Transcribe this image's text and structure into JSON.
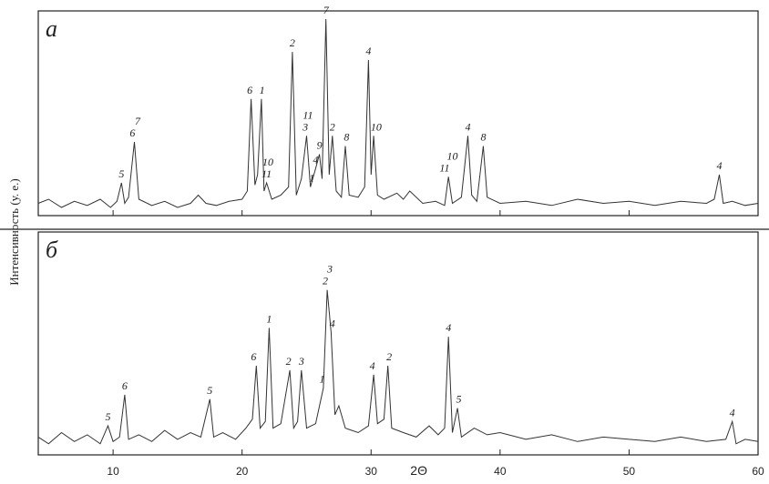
{
  "chart_data": [
    {
      "type": "line",
      "panel_label": "а",
      "ylabel": "Интенсивность (у. е.)",
      "color": "#333333",
      "xlim": [
        4.2,
        60
      ],
      "ylim": [
        0,
        100
      ],
      "x": [
        4.2,
        5,
        6,
        7,
        8,
        9,
        9.8,
        10.3,
        10.65,
        10.9,
        11.2,
        11.65,
        12,
        13,
        14,
        15,
        16,
        16.6,
        17.2,
        18,
        19,
        20,
        20.4,
        20.7,
        21,
        21.2,
        21.5,
        21.7,
        21.9,
        22.3,
        23,
        23.6,
        23.9,
        24.2,
        24.6,
        25.0,
        25.3,
        25.7,
        26.0,
        26.2,
        26.5,
        26.75,
        27.0,
        27.3,
        27.7,
        28.0,
        28.3,
        29,
        29.5,
        29.8,
        30.0,
        30.2,
        30.5,
        31,
        32,
        32.5,
        33,
        34,
        35,
        35.7,
        36.0,
        36.3,
        37,
        37.5,
        37.8,
        38.2,
        38.7,
        39,
        40,
        42,
        44,
        46,
        48,
        50,
        52,
        54,
        56,
        56.6,
        57.0,
        57.3,
        58,
        59,
        60
      ],
      "values": [
        6,
        8,
        4,
        7,
        5,
        8,
        4,
        7,
        16,
        6,
        9,
        36,
        8,
        5,
        7,
        4,
        6,
        10,
        6,
        5,
        7,
        8,
        12,
        57,
        15,
        20,
        57,
        12,
        16,
        8,
        10,
        14,
        80,
        10,
        18,
        39,
        14,
        23,
        30,
        18,
        96,
        20,
        39,
        12,
        9,
        34,
        10,
        9,
        14,
        76,
        20,
        39,
        10,
        8,
        11,
        8,
        12,
        6,
        7,
        5,
        19,
        6,
        9,
        39,
        10,
        7,
        34,
        9,
        6,
        7,
        5,
        8,
        6,
        7,
        5,
        7,
        6,
        8,
        20,
        6,
        7,
        5,
        6
      ],
      "annotations": [
        {
          "label": "5",
          "x": 10.65
        },
        {
          "label": "6",
          "x": 11.5
        },
        {
          "label": "7",
          "x": 11.9
        },
        {
          "label": "6",
          "x": 20.6
        },
        {
          "label": "1",
          "x": 21.55
        },
        {
          "label": "11",
          "x": 21.9
        },
        {
          "label": "10",
          "x": 22.0
        },
        {
          "label": "2",
          "x": 23.9
        },
        {
          "label": "3",
          "x": 24.9
        },
        {
          "label": "11",
          "x": 25.1
        },
        {
          "label": "1",
          "x": 25.4
        },
        {
          "label": "4",
          "x": 25.7
        },
        {
          "label": "9",
          "x": 26.0
        },
        {
          "label": "7",
          "x": 26.5
        },
        {
          "label": "2",
          "x": 27.0
        },
        {
          "label": "8",
          "x": 28.1
        },
        {
          "label": "4",
          "x": 29.8
        },
        {
          "label": "10",
          "x": 30.4
        },
        {
          "label": "11",
          "x": 35.7
        },
        {
          "label": "10",
          "x": 36.3
        },
        {
          "label": "4",
          "x": 37.5
        },
        {
          "label": "8",
          "x": 38.7
        },
        {
          "label": "4",
          "x": 57.0
        }
      ]
    },
    {
      "type": "line",
      "panel_label": "б",
      "xlabel": "2Θ",
      "color": "#333333",
      "xlim": [
        4.2,
        60
      ],
      "ylim": [
        0,
        100
      ],
      "xticks": [
        10,
        20,
        30,
        40,
        50,
        60
      ],
      "x": [
        4.2,
        5,
        6,
        7,
        8,
        9,
        9.6,
        10,
        10.5,
        10.9,
        11.2,
        12,
        13,
        14,
        15,
        16,
        16.8,
        17.5,
        17.8,
        18.5,
        19.5,
        20.3,
        20.8,
        21.1,
        21.4,
        21.8,
        22.1,
        22.4,
        23,
        23.7,
        24,
        24.3,
        24.6,
        25,
        25.7,
        26.3,
        26.6,
        26.9,
        27.2,
        27.5,
        28,
        29,
        29.8,
        30.2,
        30.5,
        31,
        31.3,
        31.6,
        32.5,
        33.5,
        34.5,
        35.2,
        35.7,
        36.0,
        36.3,
        36.7,
        37,
        38,
        39,
        40,
        42,
        44,
        46,
        48,
        50,
        52,
        54,
        56,
        57.5,
        58,
        58.3,
        59,
        60
      ],
      "values": [
        8,
        5,
        10,
        6,
        9,
        5,
        13,
        6,
        8,
        27,
        7,
        9,
        6,
        11,
        7,
        10,
        8,
        25,
        8,
        10,
        7,
        12,
        16,
        40,
        12,
        15,
        57,
        12,
        14,
        38,
        12,
        15,
        38,
        12,
        14,
        30,
        74,
        55,
        18,
        22,
        12,
        10,
        13,
        36,
        14,
        16,
        40,
        12,
        10,
        8,
        13,
        9,
        12,
        53,
        10,
        21,
        8,
        12,
        9,
        10,
        7,
        9,
        6,
        8,
        7,
        6,
        8,
        6,
        7,
        15,
        5,
        7,
        6
      ],
      "annotations": [
        {
          "label": "5",
          "x": 9.6
        },
        {
          "label": "6",
          "x": 10.9
        },
        {
          "label": "5",
          "x": 17.5
        },
        {
          "label": "6",
          "x": 20.9
        },
        {
          "label": "1",
          "x": 22.1
        },
        {
          "label": "2",
          "x": 23.6
        },
        {
          "label": "3",
          "x": 24.6
        },
        {
          "label": "1",
          "x": 26.2
        },
        {
          "label": "2",
          "x": 26.45
        },
        {
          "label": "3",
          "x": 26.8
        },
        {
          "label": "4",
          "x": 27.0
        },
        {
          "label": "4",
          "x": 30.1
        },
        {
          "label": "2",
          "x": 31.4
        },
        {
          "label": "4",
          "x": 36.0
        },
        {
          "label": "5",
          "x": 36.8
        },
        {
          "label": "4",
          "x": 58.0
        }
      ]
    }
  ]
}
